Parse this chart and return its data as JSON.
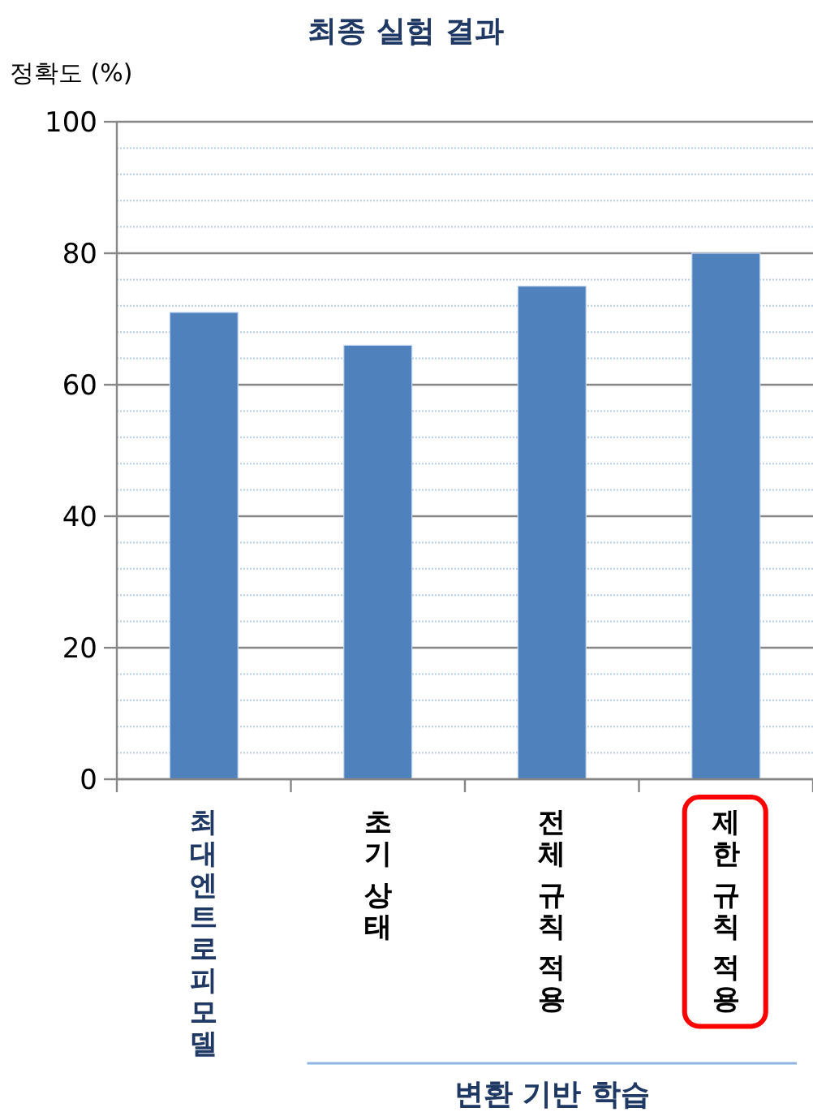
{
  "chart_data": {
    "type": "bar",
    "title": "최종 실험 결과",
    "ylabel": "정확도 (%)",
    "categories": [
      "최대엔트로피모델",
      "초기 상태",
      "전체 규칙 적용",
      "제한 규칙 적용"
    ],
    "values": [
      71,
      66,
      75,
      80
    ],
    "color": "#4f81bd",
    "ylim": [
      0,
      100
    ],
    "yticks": [
      0,
      {
        "value": 4,
        "label": null
      },
      {
        "value": 8,
        "label": null
      },
      {
        "value": 12,
        "label": null
      },
      {
        "value": 16,
        "label": null
      },
      20,
      {
        "value": 24,
        "label": null
      },
      {
        "value": 28,
        "label": null
      },
      {
        "value": 32,
        "label": null
      },
      {
        "value": 36,
        "label": null
      },
      40,
      {
        "value": 44,
        "label": null
      },
      {
        "value": 48,
        "label": null
      },
      {
        "value": 52,
        "label": null
      },
      {
        "value": 56,
        "label": null
      },
      60,
      {
        "value": 64,
        "label": null
      },
      {
        "value": 68,
        "label": null
      },
      {
        "value": 72,
        "label": null
      },
      {
        "value": 76,
        "label": null
      },
      80,
      {
        "value": 84,
        "label": null
      },
      {
        "value": 88,
        "label": null
      },
      {
        "value": 92,
        "label": null
      },
      {
        "value": 96,
        "label": null
      },
      100
    ],
    "grid": "y",
    "annotations": [
      "변환 기반 학습"
    ]
  }
}
